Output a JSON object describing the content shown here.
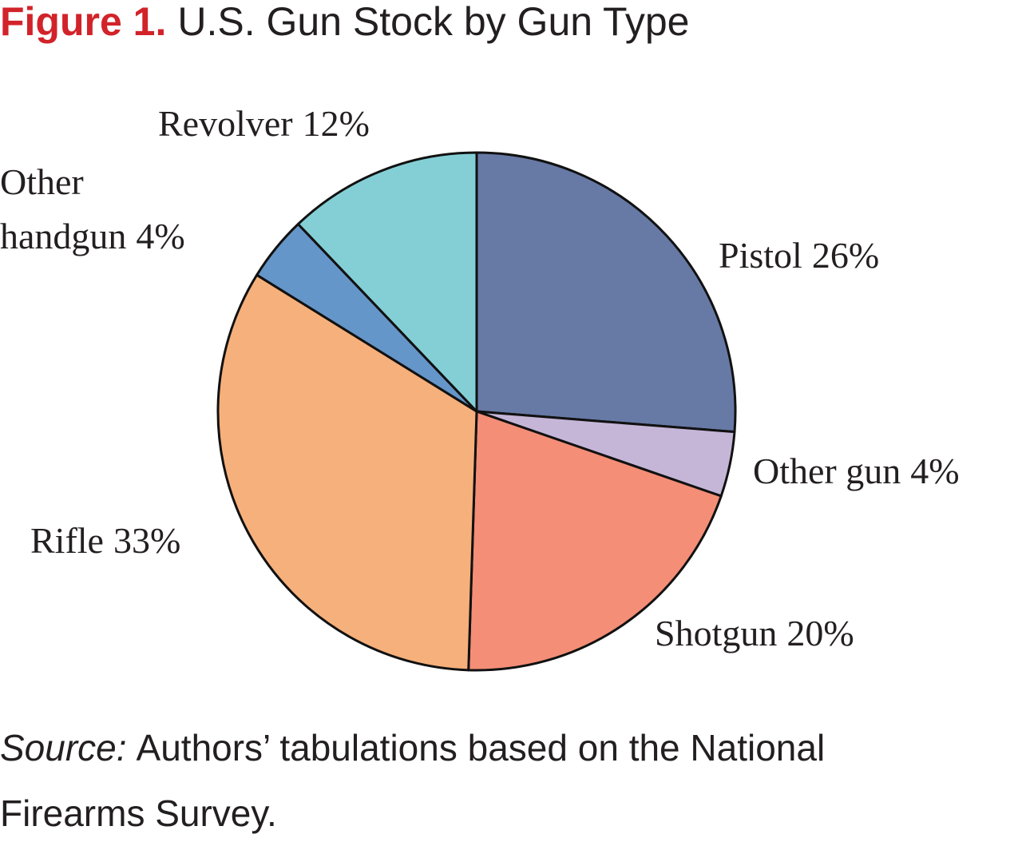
{
  "chart_data": {
    "type": "pie",
    "figure_label": "Figure 1.",
    "title": "U.S. Gun Stock by Gun Type",
    "categories": [
      "Pistol",
      "Other gun",
      "Shotgun",
      "Rifle",
      "Other handgun",
      "Revolver"
    ],
    "values": [
      26,
      4,
      20,
      33,
      4,
      12
    ],
    "value_labels": [
      "26%",
      "4%",
      "20%",
      "33%",
      "4%",
      "12%"
    ],
    "colors": [
      "#6779a5",
      "#c5b6d8",
      "#f48e77",
      "#f6b07b",
      "#6596c9",
      "#84cfd6"
    ],
    "source_label": "Source:",
    "source": "Authors’ tabulations based on the National Firearms Survey."
  }
}
